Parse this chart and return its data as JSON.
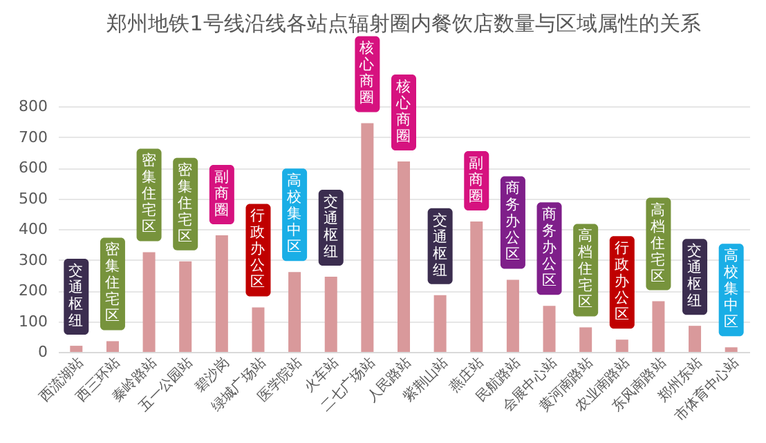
{
  "chart_data": {
    "type": "bar",
    "title": "郑州地铁1号线沿线各站点辐射圈内餐饮店数量与区域属性的关系",
    "categories": [
      "西流湖站",
      "西三环站",
      "秦岭路站",
      "五一公园站",
      "碧沙岗",
      "绿城广场站",
      "医学院站",
      "火车站",
      "二七广场站",
      "人民路站",
      "紫荆山站",
      "燕庄站",
      "民航路站",
      "会展中心站",
      "黄河南路站",
      "农业南路站",
      "东风南路站",
      "郑州东站",
      "市体育中心站"
    ],
    "values": [
      20,
      35,
      325,
      295,
      380,
      145,
      260,
      245,
      745,
      620,
      185,
      425,
      235,
      150,
      80,
      40,
      165,
      85,
      15
    ],
    "color": "#d9999b",
    "ylim": [
      0,
      800
    ],
    "yticks": [
      0,
      100,
      200,
      300,
      400,
      500,
      600,
      700,
      800
    ],
    "grid": "y",
    "annotations": [
      {
        "text": "交通枢纽",
        "x": "西流湖站",
        "y": 20
      },
      {
        "text": "密集住宅区",
        "x": "西三环站",
        "y": 35
      },
      {
        "text": "密集住宅区",
        "x": "秦岭路站",
        "y": 325
      },
      {
        "text": "密集住宅区",
        "x": "五一公园站",
        "y": 295
      },
      {
        "text": "副商圈",
        "x": "碧沙岗",
        "y": 380
      },
      {
        "text": "行政办公区",
        "x": "绿城广场站",
        "y": 145
      },
      {
        "text": "高校集中区",
        "x": "医学院站",
        "y": 260
      },
      {
        "text": "交通枢纽",
        "x": "火车站",
        "y": 245
      },
      {
        "text": "核心商圈",
        "x": "二七广场站",
        "y": 745
      },
      {
        "text": "核心商圈",
        "x": "人民路站",
        "y": 620
      },
      {
        "text": "交通枢纽",
        "x": "紫荆山站",
        "y": 185
      },
      {
        "text": "副商圈",
        "x": "燕庄站",
        "y": 425
      },
      {
        "text": "商务办公区",
        "x": "民航路站",
        "y": 235
      },
      {
        "text": "商务办公区",
        "x": "会展中心站",
        "y": 150
      },
      {
        "text": "高档住宅区",
        "x": "黄河南路站",
        "y": 80
      },
      {
        "text": "行政办公区",
        "x": "农业南路站",
        "y": 40
      },
      {
        "text": "高档住宅区",
        "x": "东风南路站",
        "y": 165
      },
      {
        "text": "交通枢纽",
        "x": "郑州东站",
        "y": 85
      },
      {
        "text": "高校集中区",
        "x": "市体育中心站",
        "y": 15
      }
    ]
  }
}
